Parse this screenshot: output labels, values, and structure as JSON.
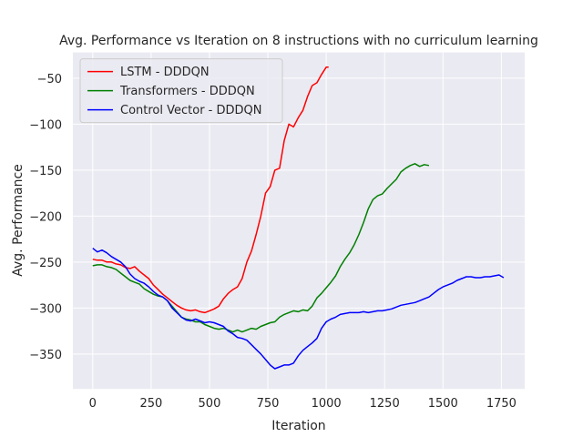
{
  "chart_data": {
    "type": "line",
    "title": "Avg. Performance vs Iteration on 8 instructions with no curriculum learning",
    "xlabel": "Iteration",
    "ylabel": "Avg. Performance",
    "xlim": [
      -85,
      1850
    ],
    "ylim": [
      -388,
      -22
    ],
    "xticks": [
      0,
      250,
      500,
      750,
      1000,
      1250,
      1500,
      1750
    ],
    "yticks": [
      -350,
      -300,
      -250,
      -200,
      -150,
      -100,
      -50
    ],
    "xtick_labels": [
      "0",
      "250",
      "500",
      "750",
      "1000",
      "1250",
      "1500",
      "1750"
    ],
    "ytick_labels": [
      "−350",
      "−300",
      "−250",
      "−200",
      "−150",
      "−100",
      "−50"
    ],
    "grid": true,
    "legend_position": "top-left",
    "background": "#eaeaf2",
    "series": [
      {
        "name": "LSTM - DDDQN",
        "color": "#ff0000",
        "x": [
          0,
          20,
          40,
          60,
          80,
          100,
          120,
          140,
          160,
          180,
          200,
          220,
          240,
          260,
          280,
          300,
          320,
          340,
          360,
          380,
          400,
          420,
          440,
          460,
          480,
          500,
          520,
          540,
          560,
          580,
          600,
          620,
          640,
          660,
          680,
          700,
          720,
          740,
          760,
          780,
          800,
          820,
          840,
          860,
          880,
          900,
          920,
          940,
          960,
          980,
          1000,
          1010
        ],
        "y": [
          -247,
          -248,
          -248,
          -250,
          -250,
          -252,
          -253,
          -256,
          -257,
          -255,
          -260,
          -264,
          -268,
          -275,
          -280,
          -285,
          -289,
          -293,
          -297,
          -300,
          -302,
          -303,
          -302,
          -304,
          -305,
          -303,
          -301,
          -298,
          -290,
          -284,
          -280,
          -277,
          -268,
          -250,
          -238,
          -220,
          -200,
          -175,
          -168,
          -150,
          -148,
          -118,
          -100,
          -103,
          -93,
          -85,
          -70,
          -58,
          -55,
          -46,
          -38,
          -38
        ]
      },
      {
        "name": "Transformers - DDDQN",
        "color": "#008000",
        "x": [
          0,
          20,
          40,
          60,
          80,
          100,
          120,
          140,
          160,
          180,
          200,
          220,
          240,
          260,
          280,
          300,
          320,
          340,
          360,
          380,
          400,
          420,
          440,
          460,
          480,
          500,
          520,
          540,
          560,
          580,
          600,
          620,
          640,
          660,
          680,
          700,
          720,
          740,
          760,
          780,
          800,
          820,
          840,
          860,
          880,
          900,
          920,
          940,
          960,
          980,
          1000,
          1020,
          1040,
          1060,
          1080,
          1100,
          1120,
          1140,
          1160,
          1180,
          1200,
          1220,
          1240,
          1260,
          1280,
          1300,
          1320,
          1340,
          1360,
          1380,
          1400,
          1420,
          1440
        ],
        "y": [
          -254,
          -253,
          -253,
          -255,
          -256,
          -258,
          -262,
          -266,
          -270,
          -272,
          -274,
          -279,
          -282,
          -285,
          -287,
          -288,
          -292,
          -298,
          -304,
          -310,
          -312,
          -313,
          -315,
          -315,
          -318,
          -320,
          -322,
          -323,
          -322,
          -324,
          -326,
          -324,
          -326,
          -324,
          -322,
          -323,
          -320,
          -318,
          -316,
          -315,
          -310,
          -307,
          -305,
          -303,
          -304,
          -302,
          -303,
          -298,
          -289,
          -284,
          -278,
          -272,
          -265,
          -255,
          -247,
          -240,
          -231,
          -220,
          -207,
          -192,
          -182,
          -178,
          -176,
          -170,
          -165,
          -160,
          -152,
          -148,
          -145,
          -143,
          -146,
          -144,
          -145
        ]
      },
      {
        "name": "Control Vector - DDDQN",
        "color": "#0000ff",
        "x": [
          0,
          20,
          40,
          60,
          80,
          100,
          120,
          140,
          160,
          180,
          200,
          220,
          240,
          260,
          280,
          300,
          320,
          340,
          360,
          380,
          400,
          420,
          440,
          460,
          480,
          500,
          520,
          540,
          560,
          580,
          600,
          620,
          640,
          660,
          680,
          700,
          720,
          740,
          760,
          780,
          800,
          820,
          840,
          860,
          880,
          900,
          920,
          940,
          960,
          980,
          1000,
          1020,
          1040,
          1060,
          1080,
          1100,
          1120,
          1140,
          1160,
          1180,
          1200,
          1220,
          1240,
          1260,
          1280,
          1300,
          1320,
          1340,
          1360,
          1380,
          1400,
          1420,
          1440,
          1460,
          1480,
          1500,
          1520,
          1540,
          1560,
          1580,
          1600,
          1620,
          1640,
          1660,
          1680,
          1700,
          1720,
          1740,
          1760
        ],
        "y": [
          -235,
          -239,
          -237,
          -240,
          -244,
          -247,
          -250,
          -255,
          -263,
          -268,
          -271,
          -273,
          -277,
          -282,
          -286,
          -288,
          -292,
          -300,
          -305,
          -310,
          -313,
          -314,
          -312,
          -314,
          -316,
          -315,
          -316,
          -318,
          -320,
          -325,
          -328,
          -332,
          -333,
          -335,
          -340,
          -345,
          -350,
          -356,
          -362,
          -366,
          -364,
          -362,
          -362,
          -360,
          -352,
          -346,
          -342,
          -338,
          -333,
          -322,
          -315,
          -312,
          -310,
          -307,
          -306,
          -305,
          -305,
          -305,
          -304,
          -305,
          -304,
          -303,
          -303,
          -302,
          -301,
          -299,
          -297,
          -296,
          -295,
          -294,
          -292,
          -290,
          -288,
          -284,
          -280,
          -277,
          -275,
          -273,
          -270,
          -268,
          -266,
          -266,
          -267,
          -267,
          -266,
          -266,
          -265,
          -264,
          -267
        ]
      }
    ]
  }
}
